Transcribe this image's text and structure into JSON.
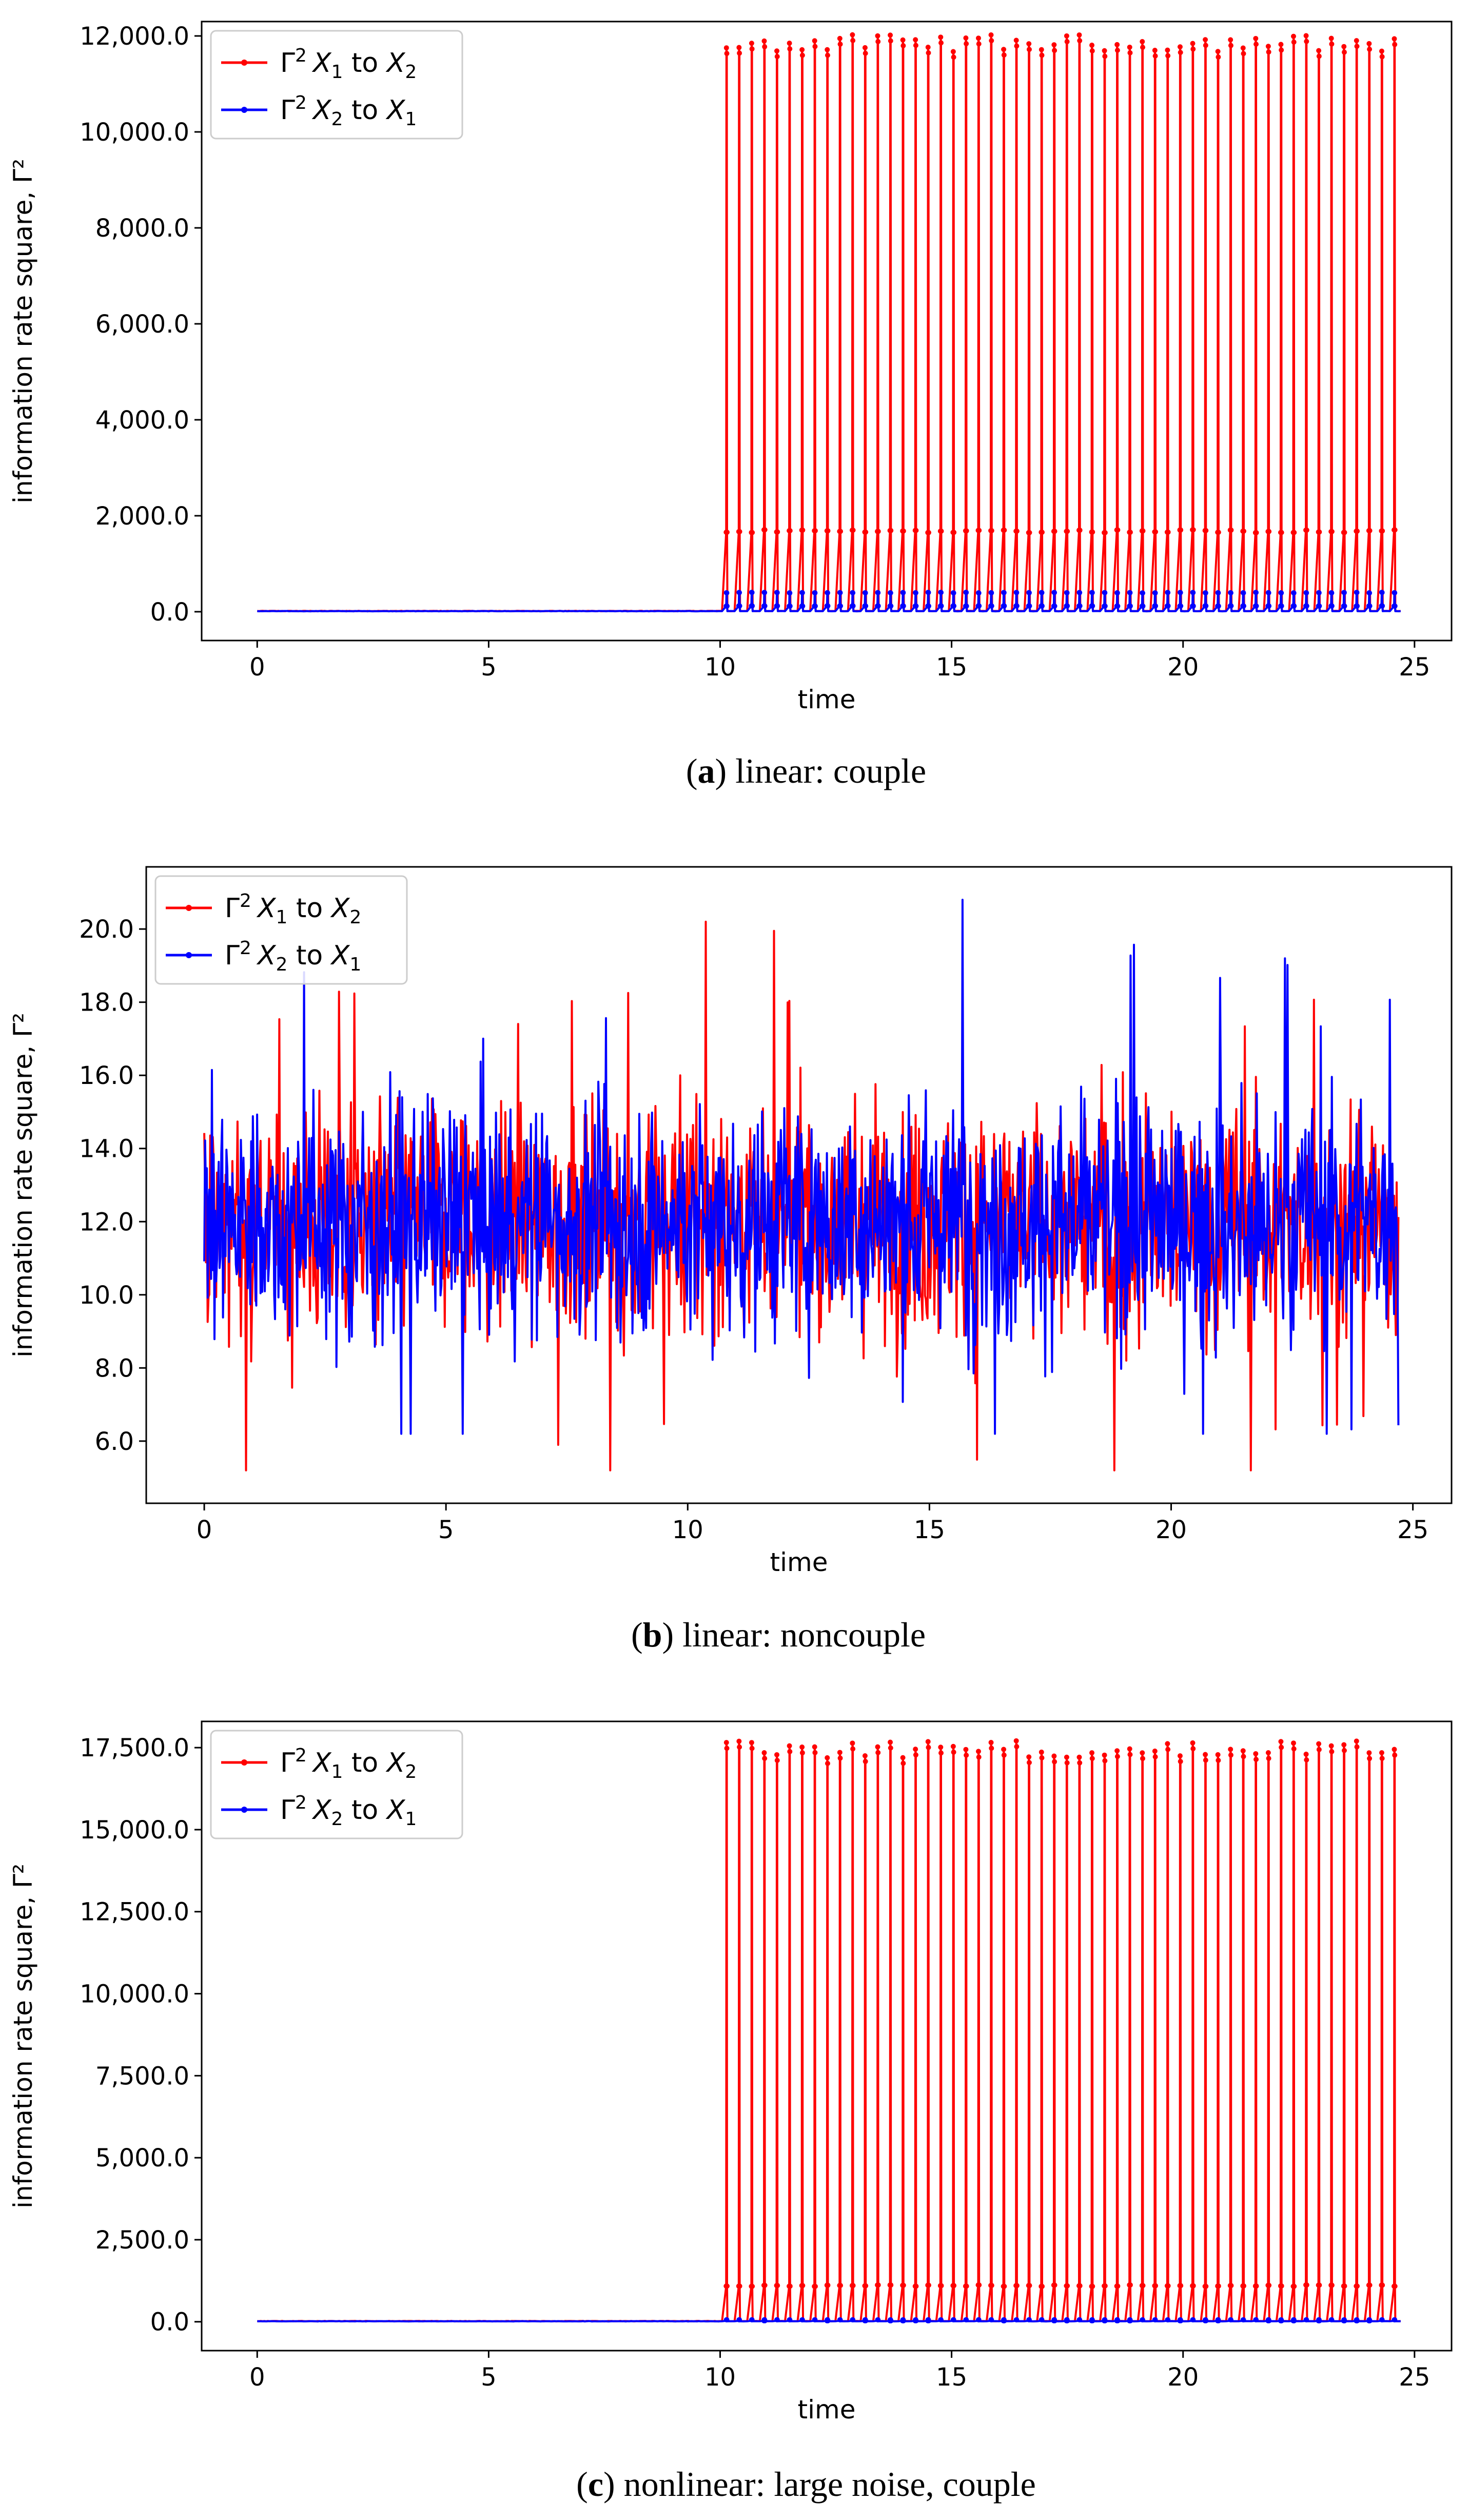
{
  "chart_data": [
    {
      "type": "line",
      "id": "a",
      "caption_letter": "a",
      "caption_text": "linear: couple",
      "xlabel": "time",
      "ylabel": "information rate square, Γ²",
      "xlim": [
        -1.2,
        25.8
      ],
      "ylim": [
        -600,
        12300
      ],
      "xticks": [
        0,
        5,
        10,
        15,
        20,
        25
      ],
      "xtick_labels": [
        "0",
        "5",
        "10",
        "15",
        "20",
        "25"
      ],
      "yticks": [
        0,
        2000,
        4000,
        6000,
        8000,
        10000,
        12000
      ],
      "ytick_labels": [
        "0.0",
        "2,000.0",
        "4,000.0",
        "6,000.0",
        "8,000.0",
        "10,000.0",
        "12,000.0"
      ],
      "legend_position": "top-left",
      "pattern": "spikes",
      "x_range": [
        0,
        24.7
      ],
      "onset": 10.0,
      "spike_count": 54,
      "series": [
        {
          "name": "Γ² X₁ to X₂",
          "legend_main": "Γ",
          "legend_sup": "2",
          "legend_a": "X",
          "legend_a_sub": "1",
          "legend_mid": " to ",
          "legend_b": "X",
          "legend_b_sub": "2",
          "color": "#ff0000",
          "baseline": 15,
          "peak": 11850,
          "mid_level": 1680
        },
        {
          "name": "Γ² X₂ to X₁",
          "legend_main": "Γ",
          "legend_sup": "2",
          "legend_a": "X",
          "legend_a_sub": "2",
          "legend_mid": " to ",
          "legend_b": "X",
          "legend_b_sub": "1",
          "color": "#0000ff",
          "baseline": 12,
          "peak": 400,
          "mid_level": 120
        }
      ]
    },
    {
      "type": "line",
      "id": "b",
      "caption_letter": "b",
      "caption_text": "linear: noncouple",
      "xlabel": "time",
      "ylabel": "information rate square, Γ²",
      "xlim": [
        -1.2,
        25.8
      ],
      "ylim": [
        4.3,
        21.7
      ],
      "xticks": [
        0,
        5,
        10,
        15,
        20,
        25
      ],
      "xtick_labels": [
        "0",
        "5",
        "10",
        "15",
        "20",
        "25"
      ],
      "yticks": [
        6,
        8,
        10,
        12,
        14,
        16,
        18,
        20
      ],
      "ytick_labels": [
        "6.0",
        "8.0",
        "10.0",
        "12.0",
        "14.0",
        "16.0",
        "18.0",
        "20.0"
      ],
      "legend_position": "top-left",
      "pattern": "noise",
      "x_range": [
        0,
        24.7
      ],
      "series": [
        {
          "name": "Γ² X₁ to X₂",
          "legend_main": "Γ",
          "legend_sup": "2",
          "legend_a": "X",
          "legend_a_sub": "1",
          "legend_mid": " to ",
          "legend_b": "X",
          "legend_b_sub": "2",
          "color": "#ff0000",
          "mean": 12.0,
          "min": 5.2,
          "max": 20.2
        },
        {
          "name": "Γ² X₂ to X₁",
          "legend_main": "Γ",
          "legend_sup": "2",
          "legend_a": "X",
          "legend_a_sub": "2",
          "legend_mid": " to ",
          "legend_b": "X",
          "legend_b_sub": "1",
          "color": "#0000ff",
          "mean": 12.0,
          "min": 6.2,
          "max": 20.8
        }
      ]
    },
    {
      "type": "line",
      "id": "c",
      "caption_letter": "c",
      "caption_text": "nonlinear: large noise, couple",
      "xlabel": "time",
      "ylabel": "information rate square, Γ²",
      "xlim": [
        -1.2,
        25.8
      ],
      "ylim": [
        -880,
        18300
      ],
      "xticks": [
        0,
        5,
        10,
        15,
        20,
        25
      ],
      "xtick_labels": [
        "0",
        "5",
        "10",
        "15",
        "20",
        "25"
      ],
      "yticks": [
        0,
        2500,
        5000,
        7500,
        10000,
        12500,
        15000,
        17500
      ],
      "ytick_labels": [
        "0.0",
        "2,500.0",
        "5,000.0",
        "7,500.0",
        "10,000.0",
        "12,500.0",
        "15,000.0",
        "17,500.0"
      ],
      "legend_position": "top-left",
      "pattern": "spikes",
      "x_range": [
        0,
        24.7
      ],
      "onset": 10.0,
      "spike_count": 54,
      "series": [
        {
          "name": "Γ² X₁ to X₂",
          "legend_main": "Γ",
          "legend_sup": "2",
          "legend_a": "X",
          "legend_a_sub": "1",
          "legend_mid": " to ",
          "legend_b": "X",
          "legend_b_sub": "2",
          "color": "#ff0000",
          "baseline": 20,
          "peak": 17450,
          "mid_level": 1100
        },
        {
          "name": "Γ² X₂ to X₁",
          "legend_main": "Γ",
          "legend_sup": "2",
          "legend_a": "X",
          "legend_a_sub": "2",
          "legend_mid": " to ",
          "legend_b": "X",
          "legend_b_sub": "1",
          "color": "#0000ff",
          "baseline": 15,
          "peak": 60,
          "mid_level": 30
        }
      ]
    }
  ]
}
